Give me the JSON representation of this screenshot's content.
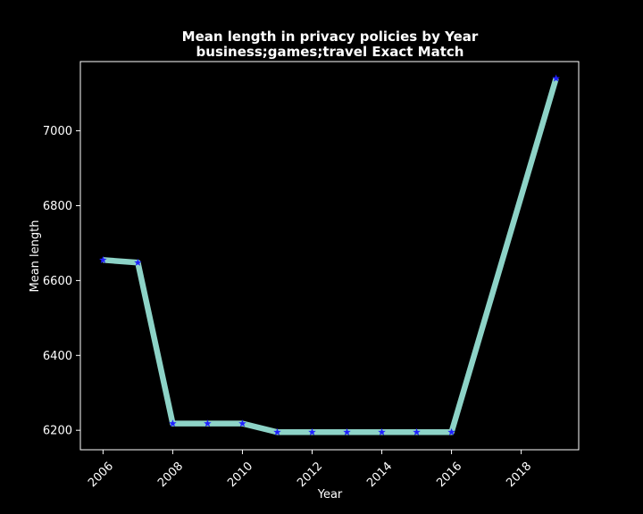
{
  "chart_data": {
    "type": "line",
    "title": "Mean length in privacy policies by Year",
    "subtitle": "business;games;travel Exact Match",
    "xlabel": "Year",
    "ylabel": "Mean length",
    "x": [
      2006,
      2007,
      2008,
      2009,
      2010,
      2011,
      2012,
      2013,
      2014,
      2015,
      2016,
      2019
    ],
    "series": [
      {
        "values": [
          6655,
          6648,
          6218,
          6218,
          6218,
          6195,
          6195,
          6195,
          6195,
          6195,
          6195,
          7140
        ],
        "line_color": "#8dd3c7",
        "marker_color": "#1f1fff",
        "marker": "star"
      }
    ],
    "xlim": [
      2005.35,
      2019.65
    ],
    "ylim": [
      6148,
      7185
    ],
    "xticks": [
      2006,
      2008,
      2010,
      2012,
      2014,
      2016,
      2018
    ],
    "yticks": [
      6200,
      6400,
      6600,
      6800,
      7000
    ],
    "grid": false,
    "background": "#000000",
    "axis_color": "#ffffff"
  }
}
